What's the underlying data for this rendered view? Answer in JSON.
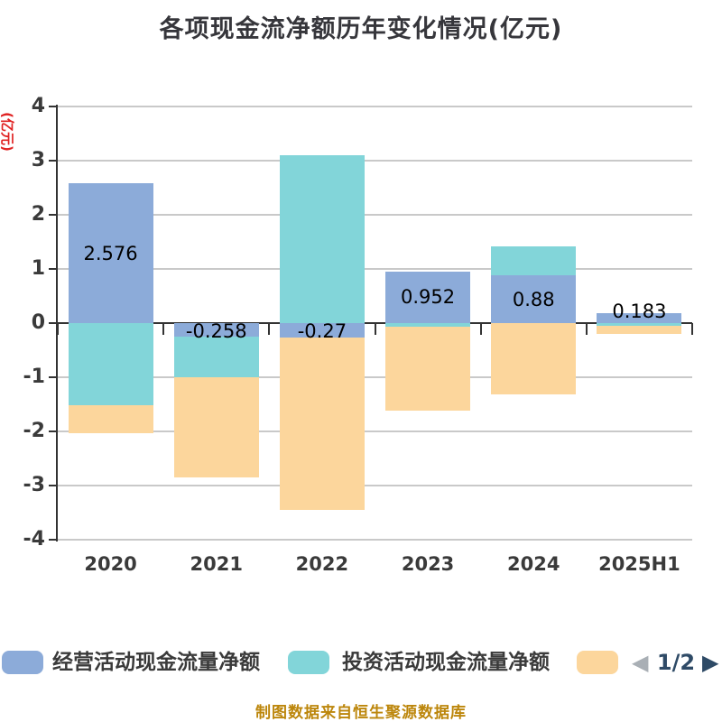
{
  "title": "各项现金流净额历年变化情况(亿元)",
  "y_axis_name": "(亿元)",
  "footer": "制图数据来自恒生聚源数据库",
  "legend": {
    "items": [
      {
        "label": "经营活动现金流量净额",
        "color": "#8CABD9"
      },
      {
        "label": "投资活动现金流量净额",
        "color": "#82D5D9"
      },
      {
        "label": "",
        "color": "#FCD69C"
      }
    ],
    "pager": {
      "prev_icon": "◀",
      "text": "1/2",
      "next_icon": "▶",
      "prev_color": "#A9AFB5",
      "next_color": "#2E4A66"
    }
  },
  "chart_data": {
    "type": "bar",
    "stacked": true,
    "categories": [
      "2020",
      "2021",
      "2022",
      "2023",
      "2024",
      "2025H1"
    ],
    "series": [
      {
        "name": "经营活动现金流量净额",
        "color": "#8CABD9",
        "values": [
          2.576,
          -0.258,
          -0.27,
          0.952,
          0.88,
          0.183
        ],
        "data_labels": [
          "2.576",
          "-0.258",
          "-0.27",
          "0.952",
          "0.88",
          "0.183"
        ]
      },
      {
        "name": "投资活动现金流量净额",
        "color": "#82D5D9",
        "values": [
          -1.51,
          -0.75,
          3.1,
          -0.07,
          0.53,
          -0.05
        ]
      },
      {
        "name": "",
        "color": "#FCD69C",
        "values": [
          -0.52,
          -1.85,
          -3.18,
          -1.54,
          -1.32,
          -0.15
        ]
      }
    ],
    "ylabel": "(亿元)",
    "ylim": [
      -4,
      4
    ],
    "y_ticks": [
      4,
      3,
      2,
      1,
      0,
      -1,
      -2,
      -3,
      -4
    ],
    "grid": true,
    "legend_position": "bottom"
  },
  "colors": {
    "axis": "#333333",
    "grid": "#C9C9C9",
    "tick_label": "#3A3A3A",
    "value_label": "#000000",
    "title": "#36363B",
    "y_axis_name": "#E02222",
    "footer": "#BC860B"
  }
}
